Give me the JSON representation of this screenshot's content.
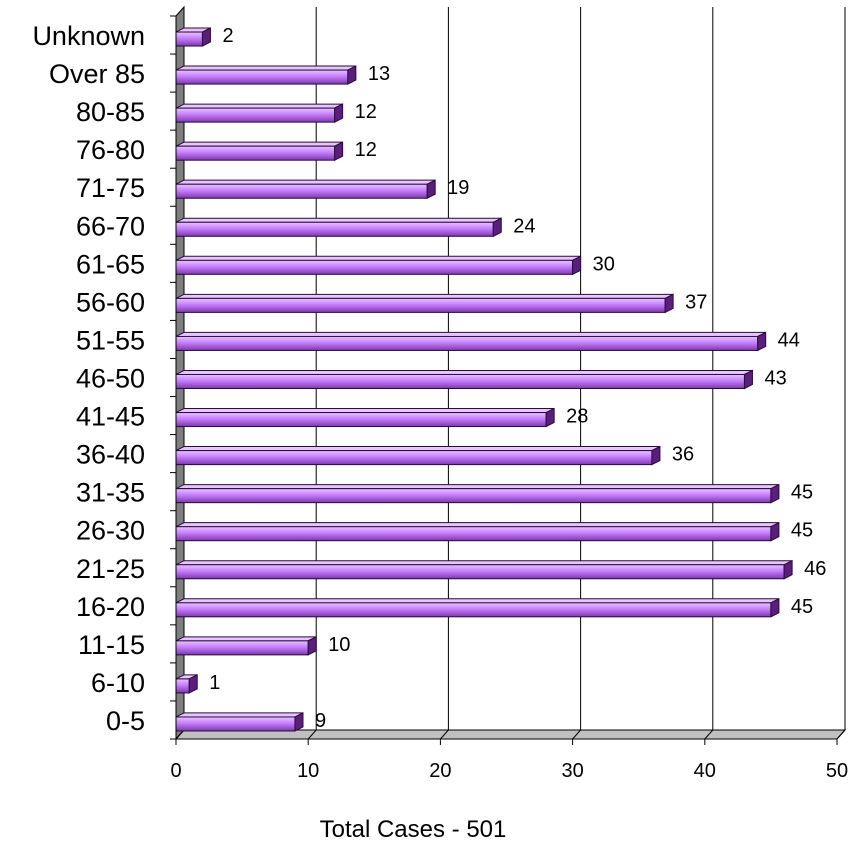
{
  "chart_data": {
    "type": "bar",
    "orientation": "horizontal",
    "style": "3d",
    "categories": [
      "0-5",
      "6-10",
      "11-15",
      "16-20",
      "21-25",
      "26-30",
      "31-35",
      "36-40",
      "41-45",
      "46-50",
      "51-55",
      "56-60",
      "61-65",
      "66-70",
      "71-75",
      "76-80",
      "80-85",
      "Over 85",
      "Unknown"
    ],
    "values": [
      9,
      1,
      10,
      45,
      46,
      45,
      45,
      36,
      28,
      43,
      44,
      37,
      30,
      24,
      19,
      12,
      12,
      13,
      2
    ],
    "xlabel": "Total Cases - 501",
    "xlim": [
      0,
      50
    ],
    "xticks": [
      0,
      10,
      20,
      30,
      40,
      50
    ],
    "grid": true,
    "legend": "none",
    "colors": {
      "bar_front": "#c77dff",
      "bar_top": "#e7c6ff",
      "bar_side": "#5a1f7a",
      "bar_outline": "#2b0a3d",
      "wall": "#7f7f7f",
      "floor": "#c0c0c0",
      "gridline": "#000000"
    }
  }
}
